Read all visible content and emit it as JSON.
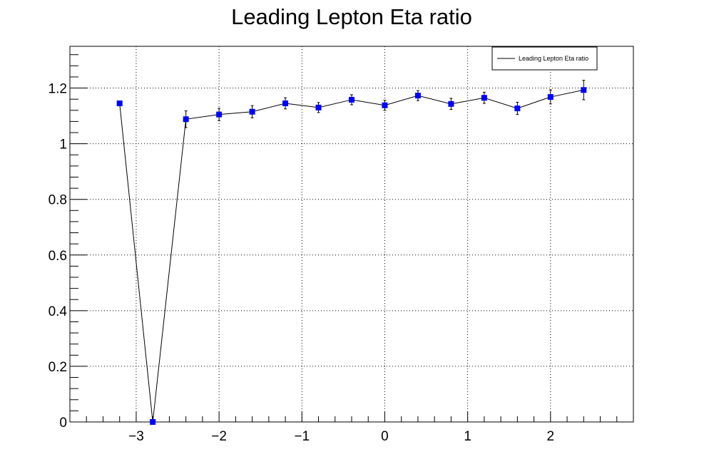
{
  "chart_data": {
    "type": "scatter",
    "title": "Leading Lepton Eta ratio",
    "xlabel": "",
    "ylabel": "",
    "xlim": [
      -3.8,
      3.0
    ],
    "ylim": [
      0,
      1.35
    ],
    "grid": true,
    "legend_position": "top-right",
    "x_ticks": [
      {
        "value": -3,
        "label": "−3"
      },
      {
        "value": -2,
        "label": "−2"
      },
      {
        "value": -1,
        "label": "−1"
      },
      {
        "value": 0,
        "label": "0"
      },
      {
        "value": 1,
        "label": "1"
      },
      {
        "value": 2,
        "label": "2"
      }
    ],
    "y_ticks": [
      {
        "value": 0,
        "label": "0"
      },
      {
        "value": 0.2,
        "label": "0.2"
      },
      {
        "value": 0.4,
        "label": "0.4"
      },
      {
        "value": 0.6,
        "label": "0.6"
      },
      {
        "value": 0.8,
        "label": "0.8"
      },
      {
        "value": 1.0,
        "label": "1"
      },
      {
        "value": 1.2,
        "label": "1.2"
      }
    ],
    "series": [
      {
        "name": "Leading Lepton Eta ratio",
        "marker_color": "#0000ff",
        "line_color": "#000000",
        "points": [
          {
            "x": -3.2,
            "y": 1.145,
            "err": 0
          },
          {
            "x": -2.8,
            "y": 0.0,
            "err": 0
          },
          {
            "x": -2.4,
            "y": 1.088,
            "err": 0.03
          },
          {
            "x": -2.0,
            "y": 1.105,
            "err": 0.022
          },
          {
            "x": -1.6,
            "y": 1.115,
            "err": 0.022
          },
          {
            "x": -1.2,
            "y": 1.145,
            "err": 0.02
          },
          {
            "x": -0.8,
            "y": 1.13,
            "err": 0.018
          },
          {
            "x": -0.4,
            "y": 1.158,
            "err": 0.018
          },
          {
            "x": 0.0,
            "y": 1.138,
            "err": 0.018
          },
          {
            "x": 0.4,
            "y": 1.173,
            "err": 0.018
          },
          {
            "x": 0.8,
            "y": 1.143,
            "err": 0.02
          },
          {
            "x": 1.2,
            "y": 1.165,
            "err": 0.02
          },
          {
            "x": 1.6,
            "y": 1.127,
            "err": 0.022
          },
          {
            "x": 2.0,
            "y": 1.168,
            "err": 0.025
          },
          {
            "x": 2.4,
            "y": 1.193,
            "err": 0.035
          }
        ]
      }
    ]
  }
}
